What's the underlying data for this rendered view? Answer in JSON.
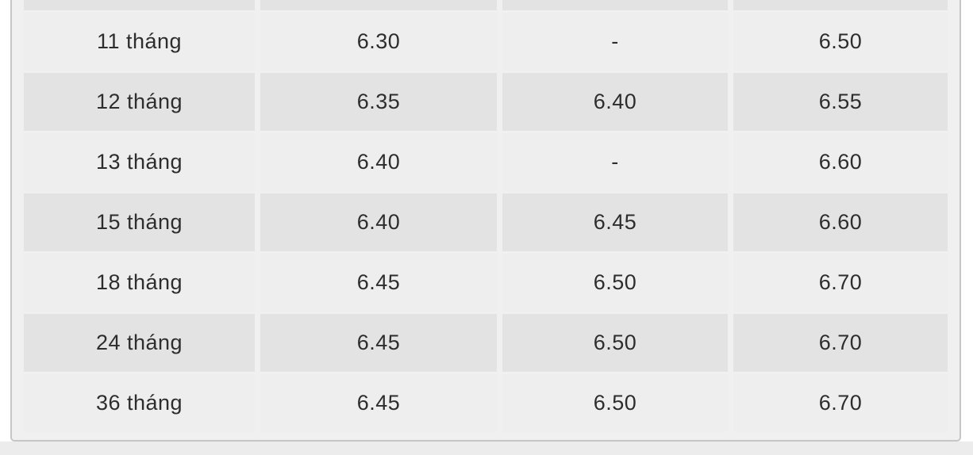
{
  "page": {
    "background": "#ffffff",
    "bottom_strip_color": "#ececec"
  },
  "panel": {
    "background": "#f0f0f0",
    "border_color": "#c6c6c6",
    "stripe_cell_color": "#e3e3e3",
    "plain_cell_color": "#eeeeee",
    "text_color": "#2d2d2d"
  },
  "chart_data": {
    "type": "table",
    "title": "",
    "columns": [
      "",
      "",
      "",
      ""
    ],
    "rows": [
      [
        "11 tháng",
        "6.30",
        "-",
        "6.50"
      ],
      [
        "12 tháng",
        "6.35",
        "6.40",
        "6.55"
      ],
      [
        "13 tháng",
        "6.40",
        "-",
        "6.60"
      ],
      [
        "15 tháng",
        "6.40",
        "6.45",
        "6.60"
      ],
      [
        "18 tháng",
        "6.45",
        "6.50",
        "6.70"
      ],
      [
        "24 tháng",
        "6.45",
        "6.50",
        "6.70"
      ],
      [
        "36 tháng",
        "6.45",
        "6.50",
        "6.70"
      ]
    ],
    "layout_hints": {
      "header_row_clipped_at_top": true,
      "striped_row_indices": [
        1,
        3,
        5
      ],
      "column_alignment": "center"
    }
  }
}
